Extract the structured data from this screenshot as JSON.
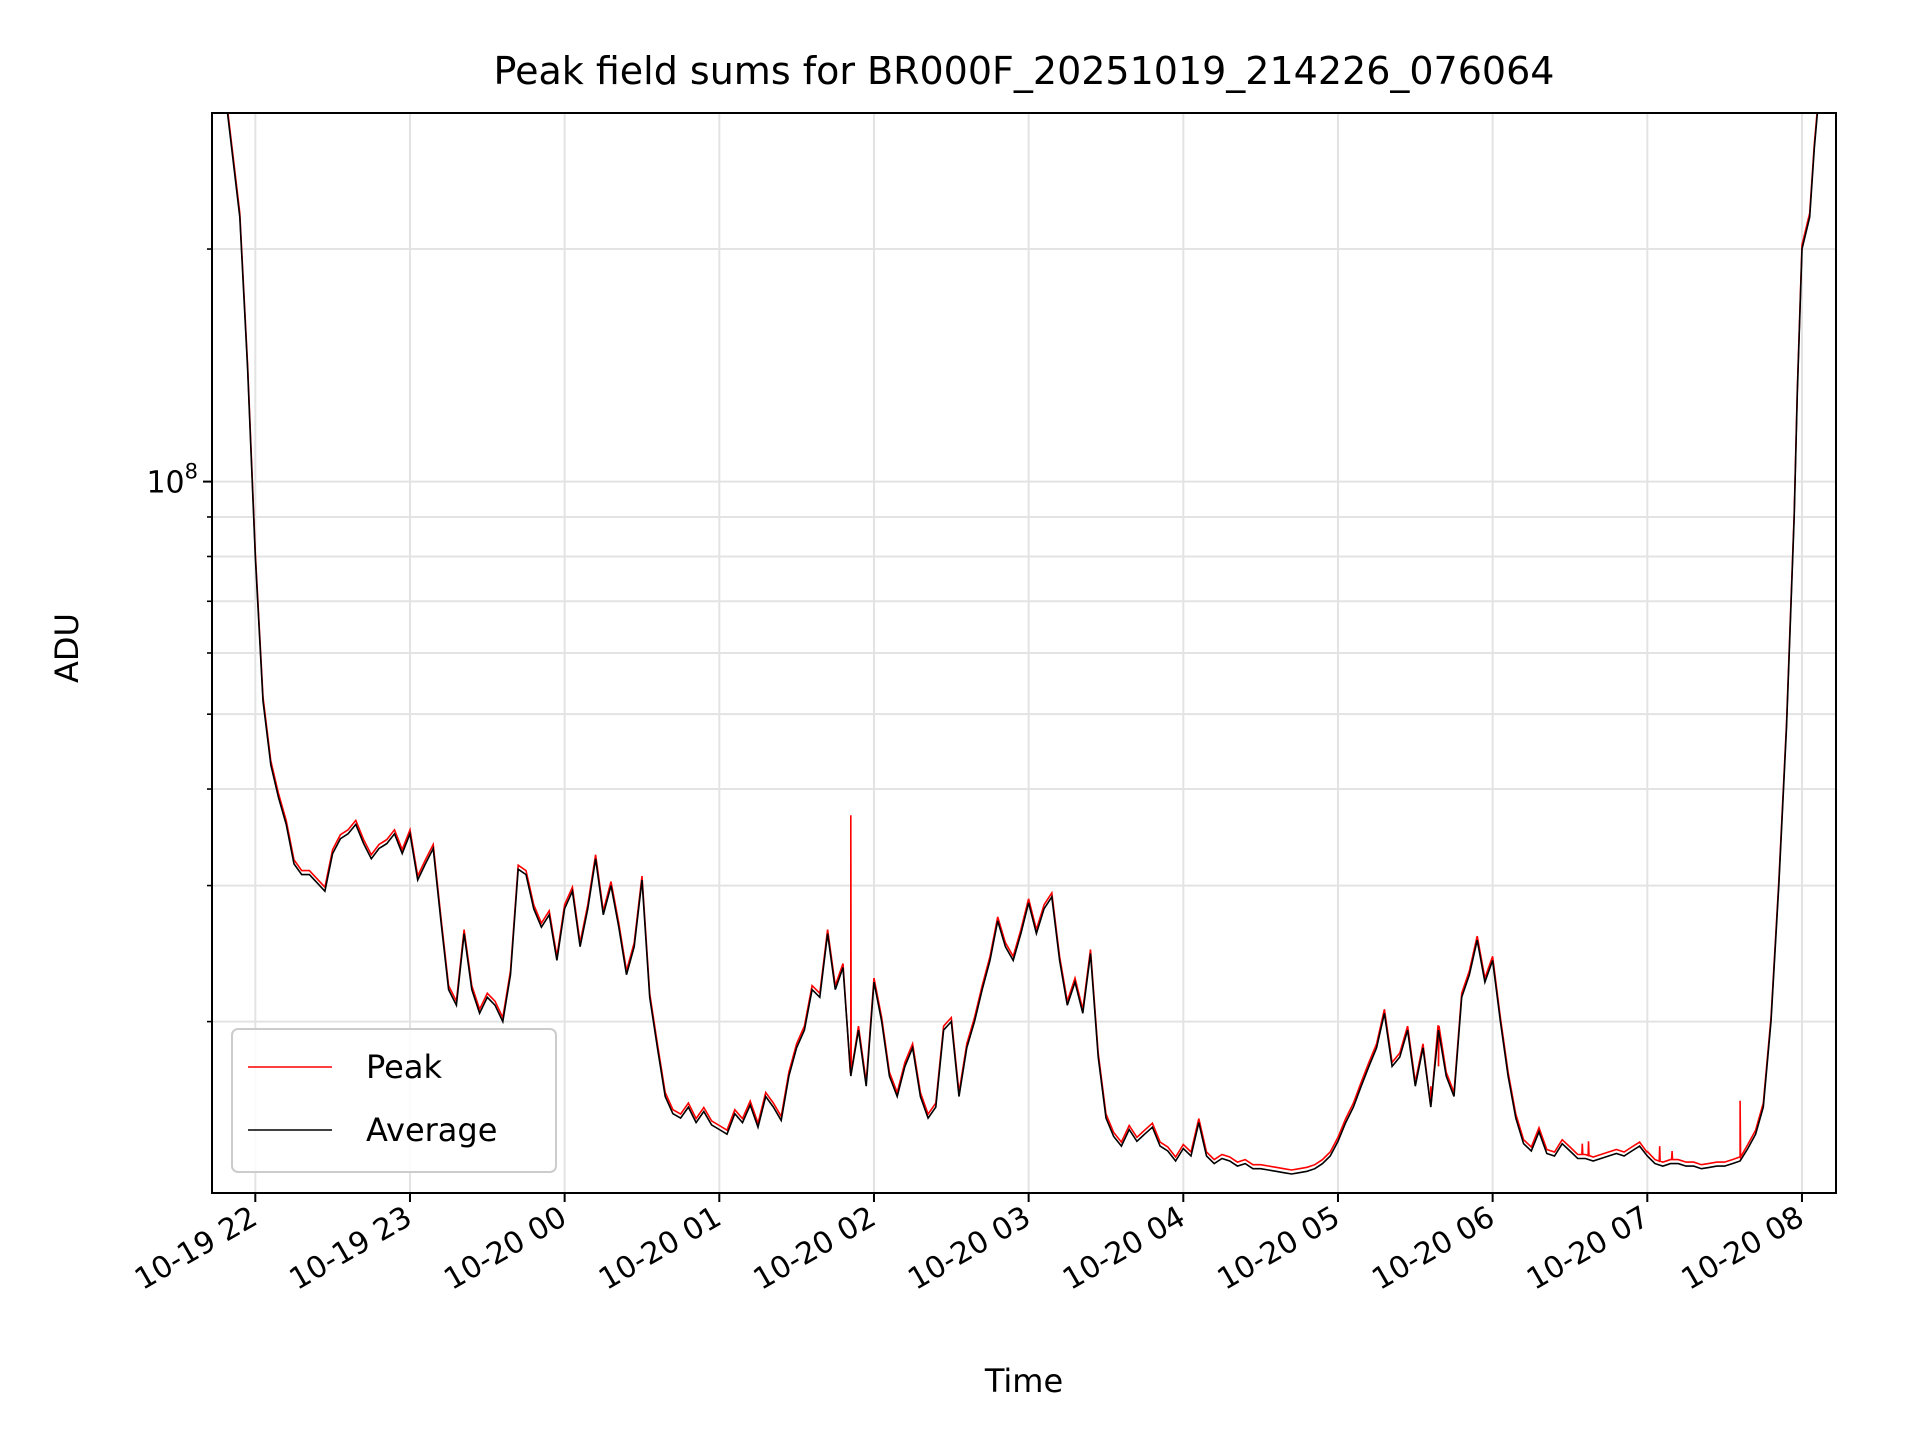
{
  "chart_data": {
    "type": "line",
    "title": "Peak field sums for BR000F_20251019_214226_076064",
    "xlabel": "Time",
    "ylabel": "ADU",
    "yscale": "log",
    "ylim": [
      12000000,
      300000000
    ],
    "xlim": [
      -0.28,
      10.22
    ],
    "x_ticks": [
      0,
      1,
      2,
      3,
      4,
      5,
      6,
      7,
      8,
      9,
      10
    ],
    "x_tick_labels": [
      "10-19 22",
      "10-19 23",
      "10-20 00",
      "10-20 01",
      "10-20 02",
      "10-20 03",
      "10-20 04",
      "10-20 05",
      "10-20 06",
      "10-20 07",
      "10-20 08"
    ],
    "y_major_tick": {
      "value": 100000000,
      "base": "10",
      "exponent": "8"
    },
    "y_minor_ticks": [
      20000000,
      30000000,
      40000000,
      50000000,
      60000000,
      70000000,
      80000000,
      90000000,
      200000000
    ],
    "grid": true,
    "legend": {
      "position": "lower-left",
      "entries": [
        {
          "label": "Peak",
          "color": "#ff0000"
        },
        {
          "label": "Average",
          "color": "#000000"
        }
      ]
    },
    "x_unit": "hours after 2025-10-19 22:00",
    "series": [
      {
        "name": "Average",
        "color": "#000000",
        "x": [
          -0.18,
          -0.1,
          -0.05,
          0.0,
          0.05,
          0.1,
          0.15,
          0.2,
          0.25,
          0.3,
          0.35,
          0.45,
          0.5,
          0.55,
          0.6,
          0.65,
          0.7,
          0.75,
          0.8,
          0.85,
          0.9,
          0.95,
          1.0,
          1.05,
          1.1,
          1.15,
          1.2,
          1.25,
          1.3,
          1.35,
          1.4,
          1.45,
          1.5,
          1.55,
          1.6,
          1.65,
          1.7,
          1.75,
          1.8,
          1.85,
          1.9,
          1.95,
          2.0,
          2.05,
          2.1,
          2.15,
          2.2,
          2.25,
          2.3,
          2.35,
          2.4,
          2.45,
          2.5,
          2.55,
          2.6,
          2.65,
          2.7,
          2.75,
          2.8,
          2.85,
          2.9,
          2.95,
          3.0,
          3.05,
          3.1,
          3.15,
          3.2,
          3.25,
          3.3,
          3.35,
          3.4,
          3.45,
          3.5,
          3.55,
          3.6,
          3.65,
          3.7,
          3.75,
          3.8,
          3.85,
          3.9,
          3.95,
          4.0,
          4.05,
          4.1,
          4.15,
          4.2,
          4.25,
          4.3,
          4.35,
          4.4,
          4.45,
          4.5,
          4.55,
          4.6,
          4.65,
          4.7,
          4.75,
          4.8,
          4.85,
          4.9,
          4.95,
          5.0,
          5.05,
          5.1,
          5.15,
          5.2,
          5.25,
          5.3,
          5.35,
          5.4,
          5.45,
          5.5,
          5.55,
          5.6,
          5.65,
          5.7,
          5.75,
          5.8,
          5.85,
          5.9,
          5.95,
          6.0,
          6.05,
          6.1,
          6.15,
          6.2,
          6.25,
          6.3,
          6.35,
          6.4,
          6.45,
          6.5,
          6.55,
          6.6,
          6.65,
          6.7,
          6.75,
          6.8,
          6.85,
          6.9,
          6.95,
          7.0,
          7.05,
          7.1,
          7.15,
          7.2,
          7.25,
          7.3,
          7.35,
          7.4,
          7.45,
          7.5,
          7.55,
          7.6,
          7.65,
          7.7,
          7.75,
          7.8,
          7.85,
          7.9,
          7.95,
          8.0,
          8.05,
          8.1,
          8.15,
          8.2,
          8.25,
          8.3,
          8.35,
          8.4,
          8.45,
          8.5,
          8.55,
          8.6,
          8.65,
          8.7,
          8.75,
          8.8,
          8.85,
          8.9,
          8.95,
          9.0,
          9.05,
          9.1,
          9.15,
          9.2,
          9.25,
          9.3,
          9.35,
          9.4,
          9.45,
          9.5,
          9.55,
          9.6,
          9.65,
          9.7,
          9.75,
          9.8,
          9.85,
          9.9,
          9.95,
          9.97,
          10.0,
          10.05,
          10.08,
          10.1
        ],
        "values": [
          300000000,
          220000000,
          140000000,
          80000000,
          52000000,
          43000000,
          39000000,
          36000000,
          32000000,
          31000000,
          31000000,
          29500000,
          33000000,
          34500000,
          35000000,
          36000000,
          34000000,
          32500000,
          33500000,
          34000000,
          35000000,
          33000000,
          35000000,
          30500000,
          32000000,
          33500000,
          27000000,
          22000000,
          21000000,
          26000000,
          22000000,
          20500000,
          21500000,
          21000000,
          20000000,
          23000000,
          31500000,
          31000000,
          28000000,
          26500000,
          27500000,
          24000000,
          28000000,
          29500000,
          25000000,
          28000000,
          32500000,
          27500000,
          30000000,
          26500000,
          23000000,
          25000000,
          30500000,
          21500000,
          18500000,
          16000000,
          15200000,
          15000000,
          15500000,
          14800000,
          15300000,
          14700000,
          14500000,
          14300000,
          15200000,
          14800000,
          15600000,
          14600000,
          16000000,
          15500000,
          14900000,
          17000000,
          18500000,
          19500000,
          22000000,
          21500000,
          26000000,
          22000000,
          23500000,
          17000000,
          19500000,
          16500000,
          22500000,
          20000000,
          17000000,
          16000000,
          17500000,
          18500000,
          16000000,
          15000000,
          15500000,
          19500000,
          20000000,
          16000000,
          18500000,
          20000000,
          22000000,
          24000000,
          27000000,
          25000000,
          24000000,
          26000000,
          28500000,
          26000000,
          28000000,
          29000000,
          24000000,
          21000000,
          22500000,
          20500000,
          24500000,
          18000000,
          15000000,
          14200000,
          13800000,
          14500000,
          14000000,
          14300000,
          14600000,
          13800000,
          13600000,
          13200000,
          13700000,
          13400000,
          14800000,
          13400000,
          13100000,
          13300000,
          13200000,
          13000000,
          13100000,
          12900000,
          12900000,
          12850000,
          12800000,
          12750000,
          12700000,
          12750000,
          12800000,
          12900000,
          13100000,
          13400000,
          14000000,
          14800000,
          15500000,
          16500000,
          17500000,
          18500000,
          20500000,
          17500000,
          18000000,
          19500000,
          16500000,
          18500000,
          15500000,
          19500000,
          17000000,
          16000000,
          21500000,
          23000000,
          25500000,
          22500000,
          24000000,
          20000000,
          17000000,
          15000000,
          13900000,
          13600000,
          14400000,
          13500000,
          13400000,
          13900000,
          13600000,
          13300000,
          13300000,
          13200000,
          13300000,
          13400000,
          13500000,
          13400000,
          13600000,
          13800000,
          13400000,
          13100000,
          13000000,
          13100000,
          13100000,
          13000000,
          13000000,
          12900000,
          12950000,
          13000000,
          13000000,
          13100000,
          13200000,
          13700000,
          14300000,
          15500000,
          20000000,
          30000000,
          48000000,
          90000000,
          130000000,
          200000000,
          220000000,
          270000000,
          300000000
        ]
      },
      {
        "name": "Peak",
        "color": "#ff0000",
        "note": "closely follows Average; brief spikes listed",
        "spikes": [
          {
            "x": 3.85,
            "value": 37000000
          },
          {
            "x": 7.6,
            "value": 16500000
          },
          {
            "x": 7.65,
            "value": 17500000
          },
          {
            "x": 8.58,
            "value": 13900000
          },
          {
            "x": 8.62,
            "value": 14000000
          },
          {
            "x": 9.0,
            "value": 13600000
          },
          {
            "x": 9.08,
            "value": 13800000
          },
          {
            "x": 9.16,
            "value": 13600000
          },
          {
            "x": 9.6,
            "value": 15800000
          }
        ]
      }
    ]
  }
}
